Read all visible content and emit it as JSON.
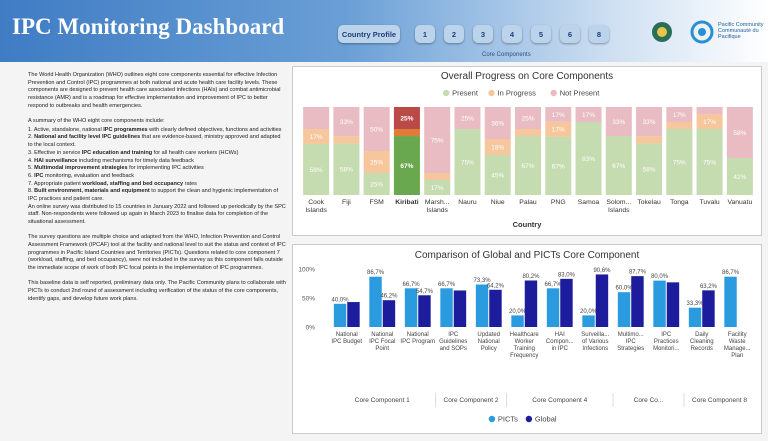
{
  "header": {
    "title": "IPC Monitoring Dashboard",
    "nav": [
      "Country Profile",
      "1",
      "2",
      "3",
      "4",
      "5",
      "6",
      "8"
    ],
    "nav_caption": "Core Components",
    "org": [
      "Pacific Community",
      "Communauté du Pacifique"
    ]
  },
  "intro": {
    "paragraphs_top": [
      "The World Health Organization (WHO) outlines eight core components essential for effective Infection Prevention and Control (IPC) programmes at both national and acute health care facility levels. These components are designed to prevent health care associated infections (HAIs) and combat antimicrobial resistance (AMR) and is a roadmap for effective implementation and improvement of IPC to better respond to outbreaks and health emergencies.",
      "A summary of the WHO eight core components include:"
    ],
    "items": [
      [
        "1. Active, standalone, national ",
        "IPC programmes",
        " with clearly defined objectives, functions and activities"
      ],
      [
        "2. ",
        "National and facility level IPC guidelines",
        " that are evidence-based, ministry approved and adapted to the local context."
      ],
      [
        "3. Effective in service ",
        "IPC education and training",
        " for all health care workers (HCWs)"
      ],
      [
        "4. ",
        "HAI surveillance",
        " including mechanisms for timely data feedback"
      ],
      [
        "5. ",
        "Multimodal improvement strategies",
        " for implementing IPC activities"
      ],
      [
        "6. ",
        "IPC",
        " monitoring, evaluation and feedback"
      ],
      [
        "7. Appropriate patient ",
        "workload, staffing and bed occupancy",
        " rates"
      ],
      [
        "8. ",
        "Built environment, materials and equipment",
        " to support the clean and hygienic implementation of IPC practices and patient care."
      ]
    ],
    "paragraphs_bottom": [
      "An online survey was distributed to 15 countries in January 2022 and followed up periodically by the SPC staff. Non-respondents were followed up again in March 2023 to finalise data for completion of the situational assessment.",
      "The survey questions are multiple choice and adapted from the WHO, Infection Prevention and Control Assessment Framework (IPCAF) tool at the facility and national level to suit the status and context of IPC programmes in Pacific Island Countries and Territories (PICTs). Questions related to core component 7 (workload, staffing, and bed occupancy), were not included in the survey as this component falls outside the immediate scope of work of both IPC focal points in the implementation of IPC programmes.",
      "This baseline data is self reported, preliminary data only. The Pacific Community plans to collaborate with PICTs to conduct 2nd round of assessment including verification of the status of the core components, identify gaps, and develop future work plans."
    ]
  },
  "chart_data": [
    {
      "type": "stacked_bar",
      "title": "Overall Progress on Core Components",
      "x_label": "Country",
      "legend": "top",
      "highlight": "Kiribati",
      "categories": [
        "Cook Islands",
        "Fiji",
        "FSM",
        "Kiribati",
        "Marsh... Islands",
        "Nauru",
        "Niue",
        "Palau",
        "PNG",
        "Samoa",
        "Solom... Islands",
        "Tokelau",
        "Tonga",
        "Tuvalu",
        "Vanuatu"
      ],
      "series": [
        {
          "name": "Present",
          "color": "#c5dbb0",
          "highlight_color": "#6aa84f",
          "values": [
            58,
            58,
            25,
            67,
            17,
            75,
            45,
            67,
            67,
            83,
            67,
            58,
            75,
            75,
            42
          ],
          "value_labels": [
            "58%",
            "58%",
            "25%",
            "67%",
            "17%",
            "75%",
            "45%",
            "67%",
            "67%",
            "83%",
            "67%",
            "58%",
            "75%",
            "75%",
            "42%"
          ]
        },
        {
          "name": "In Progress",
          "color": "#f6c79c",
          "highlight_color": "#e07b39",
          "values": [
            17,
            8,
            25,
            8,
            8,
            0,
            18,
            8,
            17,
            0,
            0,
            8,
            8,
            17,
            0
          ],
          "value_labels": [
            "17%",
            null,
            "25%",
            null,
            null,
            null,
            "18%",
            null,
            "17%",
            null,
            null,
            null,
            null,
            "17%",
            null
          ]
        },
        {
          "name": "Not Present",
          "color": "#e8bcc2",
          "highlight_color": "#b94a48",
          "values": [
            25,
            33,
            50,
            25,
            75,
            25,
            36,
            25,
            17,
            17,
            33,
            33,
            17,
            8,
            58
          ],
          "value_labels": [
            null,
            "33%",
            "50%",
            "25%",
            "75%",
            "25%",
            "36%",
            "25%",
            "17%",
            "17%",
            "33%",
            "33%",
            "17%",
            null,
            "58%"
          ]
        }
      ]
    },
    {
      "type": "grouped_bar",
      "title": "Comparison of Global and PICTs Core Component",
      "legend": "bottom",
      "ylim": [
        0,
        100
      ],
      "yticks": [
        {
          "value": 0,
          "label": "0%"
        },
        {
          "value": 50,
          "label": "50%"
        },
        {
          "value": 100,
          "label": "100%"
        }
      ],
      "categories": [
        "National IPC Budget",
        "National IPC Focal Point",
        "National IPC Program",
        "IPC Guidelines and SOPs",
        "Updated National Policy",
        "Healthcare Worker Training Frequency",
        "HAI Compon... in IPC",
        "Surveilla... of Various Infections",
        "Multimo... IPC Strategies",
        "IPC Practices Monitori...",
        "Daily Cleaning Records",
        "Facility Waste Manage... Plan"
      ],
      "groups": [
        "Core Component 1",
        "Core Component 1",
        "Core Component 1",
        "Core Component 2",
        "Core Component 2",
        "Core Component 4",
        "Core Component 4",
        "Core Component 4",
        "Core Co...",
        "Core Co...",
        "Core Component 8",
        "Core Component 8"
      ],
      "series": [
        {
          "name": "PICTs",
          "color": "#2b9be0",
          "values": [
            40.0,
            86.7,
            66.7,
            66.7,
            73.3,
            20.0,
            66.7,
            20.0,
            60.0,
            80.0,
            33.3,
            86.7
          ],
          "value_labels": [
            "40,0%",
            "86,7%",
            "66,7%",
            "66,7%",
            "73,3%",
            "20,0%",
            "66,7%",
            "20,0%",
            "60,0%",
            "80,0%",
            "33,3%",
            "86,7%"
          ]
        },
        {
          "name": "Global",
          "color": "#1c1c9c",
          "values": [
            43,
            46.2,
            54.7,
            63,
            64.2,
            80.2,
            83.0,
            90.6,
            87.7,
            77,
            63.2,
            null
          ],
          "value_labels": [
            null,
            "46,2%",
            "54,7%",
            null,
            "64,2%",
            "80,2%",
            "83,0%",
            "90,6%",
            "87,7%",
            null,
            "63,2%",
            null
          ]
        }
      ]
    }
  ]
}
